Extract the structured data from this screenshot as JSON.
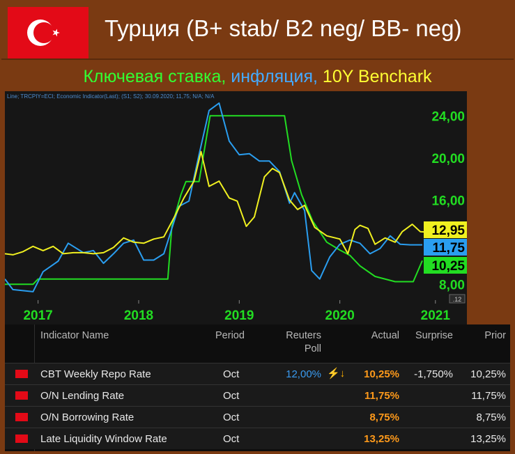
{
  "title": "Турция (B+ stab/ B2 neg/ BB- neg)",
  "subtitle": {
    "part1": "Ключевая ставка, ",
    "part2": "инфляция, ",
    "part3": "10Y Benchark"
  },
  "colors": {
    "key_rate": "#22dd22",
    "inflation": "#2a9ef0",
    "bond_10y": "#f0f020",
    "banner_bg": "#7a3a12",
    "actual_text": "#ff9a1a",
    "poll_text": "#3a9bf0"
  },
  "table": {
    "headers": [
      "Indicator Name",
      "Period",
      "Reuters",
      "Poll",
      "Actual",
      "Surprise",
      "Prior"
    ],
    "rows": [
      {
        "name": "CBT Weekly Repo Rate",
        "period": "Oct",
        "poll": "12,00%",
        "icon": "⚡↓",
        "actual": "10,25%",
        "surprise": "-1,750%",
        "prior": "10,25%"
      },
      {
        "name": "O/N Lending Rate",
        "period": "Oct",
        "poll": "",
        "actual": "11,75%",
        "surprise": "",
        "prior": "11,75%"
      },
      {
        "name": "O/N Borrowing Rate",
        "period": "Oct",
        "poll": "",
        "actual": "8,75%",
        "surprise": "",
        "prior": "8,75%"
      },
      {
        "name": "Late Liquidity Window Rate",
        "period": "Oct",
        "poll": "",
        "actual": "13,25%",
        "surprise": "",
        "prior": "13,25%"
      }
    ]
  },
  "chart_data": {
    "type": "line",
    "header_text": "Line; TRCPIY=ECI; Economic Indicator(Last); (S1; S2); 30.09.2020; 11,75; N/A; N/A",
    "scale_badge": ".12",
    "x_tick_labels": [
      "2017",
      "2018",
      "2019",
      "2020",
      "2021"
    ],
    "y_tick_labels": [
      "24,00",
      "20,00",
      "16,00",
      "8,00"
    ],
    "ylim": [
      6.5,
      26
    ],
    "last_value_labels": [
      {
        "series": "bond_10y",
        "text": "12,95",
        "value": 12.95
      },
      {
        "series": "inflation",
        "text": "11,75",
        "value": 11.75
      },
      {
        "series": "key_rate",
        "text": "10,25",
        "value": 10.25
      }
    ],
    "grid": false,
    "series": [
      {
        "id": "key_rate",
        "color": "#22dd22",
        "points": [
          [
            2016.67,
            8.0
          ],
          [
            2016.95,
            8.0
          ],
          [
            2017.0,
            8.5
          ],
          [
            2017.5,
            8.5
          ],
          [
            2018.0,
            8.5
          ],
          [
            2018.29,
            8.5
          ],
          [
            2018.33,
            13.5
          ],
          [
            2018.42,
            16.5
          ],
          [
            2018.47,
            17.75
          ],
          [
            2018.6,
            17.75
          ],
          [
            2018.71,
            24.0
          ],
          [
            2019.0,
            24.0
          ],
          [
            2019.45,
            24.0
          ],
          [
            2019.52,
            19.75
          ],
          [
            2019.62,
            16.5
          ],
          [
            2019.73,
            14.0
          ],
          [
            2019.87,
            12.0
          ],
          [
            2020.0,
            11.25
          ],
          [
            2020.1,
            10.75
          ],
          [
            2020.2,
            9.75
          ],
          [
            2020.35,
            8.75
          ],
          [
            2020.55,
            8.25
          ],
          [
            2020.63,
            8.25
          ],
          [
            2020.73,
            8.25
          ],
          [
            2020.82,
            10.25
          ]
        ]
      },
      {
        "id": "inflation",
        "color": "#2a9ef0",
        "points": [
          [
            2016.67,
            8.5
          ],
          [
            2016.75,
            7.5
          ],
          [
            2016.95,
            7.3
          ],
          [
            2017.05,
            9.2
          ],
          [
            2017.2,
            10.2
          ],
          [
            2017.3,
            11.9
          ],
          [
            2017.45,
            11.0
          ],
          [
            2017.55,
            11.2
          ],
          [
            2017.65,
            10.0
          ],
          [
            2017.75,
            10.9
          ],
          [
            2017.85,
            11.9
          ],
          [
            2017.95,
            12.2
          ],
          [
            2018.05,
            10.3
          ],
          [
            2018.15,
            10.3
          ],
          [
            2018.25,
            10.9
          ],
          [
            2018.4,
            15.4
          ],
          [
            2018.5,
            15.9
          ],
          [
            2018.6,
            20.3
          ],
          [
            2018.7,
            24.5
          ],
          [
            2018.8,
            25.2
          ],
          [
            2018.9,
            21.6
          ],
          [
            2019.0,
            20.3
          ],
          [
            2019.1,
            20.4
          ],
          [
            2019.2,
            19.7
          ],
          [
            2019.3,
            19.7
          ],
          [
            2019.4,
            18.7
          ],
          [
            2019.5,
            15.7
          ],
          [
            2019.55,
            16.7
          ],
          [
            2019.65,
            15.0
          ],
          [
            2019.72,
            9.3
          ],
          [
            2019.8,
            8.5
          ],
          [
            2019.9,
            10.6
          ],
          [
            2020.0,
            11.8
          ],
          [
            2020.1,
            12.2
          ],
          [
            2020.2,
            11.9
          ],
          [
            2020.3,
            10.9
          ],
          [
            2020.4,
            11.4
          ],
          [
            2020.5,
            12.6
          ],
          [
            2020.6,
            11.8
          ],
          [
            2020.7,
            11.75
          ],
          [
            2020.82,
            11.75
          ]
        ]
      },
      {
        "id": "bond_10y",
        "color": "#f0f020",
        "points": [
          [
            2016.67,
            10.9
          ],
          [
            2016.75,
            10.8
          ],
          [
            2016.85,
            11.1
          ],
          [
            2016.95,
            11.6
          ],
          [
            2017.05,
            11.2
          ],
          [
            2017.15,
            11.6
          ],
          [
            2017.25,
            10.9
          ],
          [
            2017.35,
            11.0
          ],
          [
            2017.45,
            11.0
          ],
          [
            2017.55,
            10.9
          ],
          [
            2017.65,
            11.0
          ],
          [
            2017.75,
            11.5
          ],
          [
            2017.85,
            12.4
          ],
          [
            2017.95,
            12.0
          ],
          [
            2018.05,
            11.9
          ],
          [
            2018.15,
            12.3
          ],
          [
            2018.25,
            12.5
          ],
          [
            2018.35,
            14.3
          ],
          [
            2018.45,
            16.2
          ],
          [
            2018.55,
            17.8
          ],
          [
            2018.62,
            20.6
          ],
          [
            2018.7,
            17.3
          ],
          [
            2018.8,
            17.8
          ],
          [
            2018.9,
            16.2
          ],
          [
            2018.98,
            15.9
          ],
          [
            2019.07,
            13.5
          ],
          [
            2019.15,
            14.4
          ],
          [
            2019.25,
            18.2
          ],
          [
            2019.33,
            19.0
          ],
          [
            2019.4,
            18.6
          ],
          [
            2019.45,
            17.3
          ],
          [
            2019.5,
            16.0
          ],
          [
            2019.58,
            15.1
          ],
          [
            2019.65,
            15.5
          ],
          [
            2019.75,
            13.4
          ],
          [
            2019.87,
            12.6
          ],
          [
            2020.0,
            12.3
          ],
          [
            2020.08,
            10.9
          ],
          [
            2020.15,
            13.2
          ],
          [
            2020.2,
            13.6
          ],
          [
            2020.28,
            13.3
          ],
          [
            2020.35,
            11.8
          ],
          [
            2020.45,
            12.4
          ],
          [
            2020.55,
            12.0
          ],
          [
            2020.62,
            13.0
          ],
          [
            2020.72,
            13.7
          ],
          [
            2020.8,
            13.0
          ],
          [
            2020.88,
            12.95
          ]
        ]
      }
    ]
  }
}
